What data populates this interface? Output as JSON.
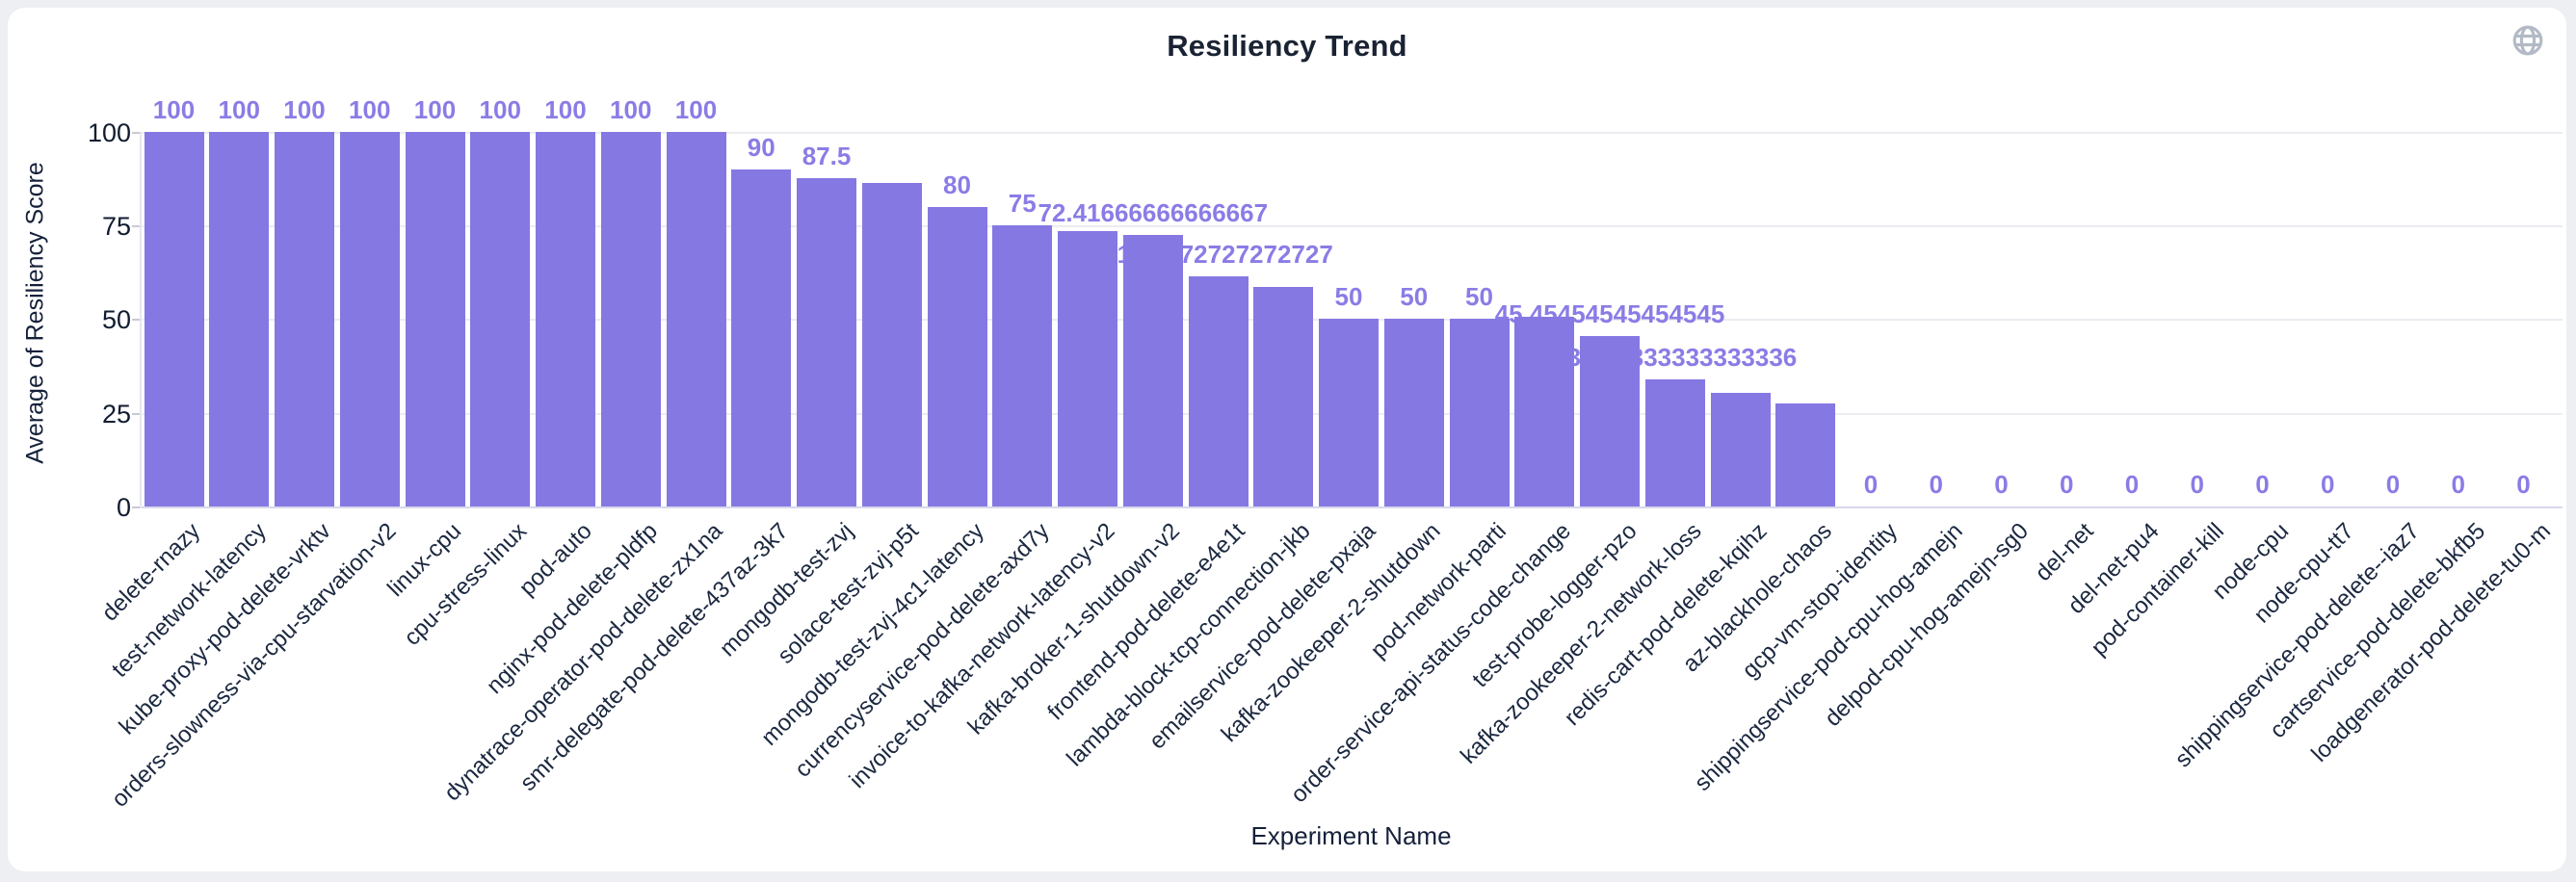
{
  "page": {
    "background": "#edeff2",
    "card_background": "#ffffff"
  },
  "header": {
    "title": "Resiliency Trend",
    "globe_icon": "globe-icon",
    "globe_color": "#b3bac6"
  },
  "chart_data": {
    "type": "bar",
    "title": "Resiliency Trend",
    "xlabel": "Experiment Name",
    "ylabel": "Average of Resiliency Score",
    "ylim": [
      0,
      100
    ],
    "yticks": [
      "0",
      "25",
      "50",
      "75",
      "100"
    ],
    "grid": true,
    "legend": "none",
    "bar_color": "#8578E2",
    "value_label_color": "#8A7CE6",
    "bars": [
      {
        "category": "delete-rnazy",
        "value": 100,
        "label": "100"
      },
      {
        "category": "test-network-latency",
        "value": 100,
        "label": "100"
      },
      {
        "category": "kube-proxy-pod-delete-vrktv",
        "value": 100,
        "label": "100"
      },
      {
        "category": "orders-slowness-via-cpu-starvation-v2",
        "value": 100,
        "label": "100"
      },
      {
        "category": "linux-cpu",
        "value": 100,
        "label": "100"
      },
      {
        "category": "cpu-stress-linux",
        "value": 100,
        "label": "100"
      },
      {
        "category": "pod-auto",
        "value": 100,
        "label": "100"
      },
      {
        "category": "nginx-pod-delete-pldfp",
        "value": 100,
        "label": "100"
      },
      {
        "category": "dynatrace-operator-pod-delete-zx1na",
        "value": 100,
        "label": "100"
      },
      {
        "category": "smr-delegate-pod-delete-437az-3k7",
        "value": 90,
        "label": "90"
      },
      {
        "category": "mongodb-test-zvj",
        "value": 87.5,
        "label": "87.5"
      },
      {
        "category": "solace-test-zvj-p5t",
        "value": 86.4,
        "label": ""
      },
      {
        "category": "mongodb-test-zvj-4c1-latency",
        "value": 80,
        "label": "80"
      },
      {
        "category": "currencyservice-pod-delete-axd7y",
        "value": 75,
        "label": "75"
      },
      {
        "category": "invoice-to-kafka-network-latency-v2",
        "value": 73.4,
        "label": ""
      },
      {
        "category": "kafka-broker-1-shutdown-v2",
        "value": 72.41666666666667,
        "label": "72.41666666666667"
      },
      {
        "category": "frontend-pod-delete-e4e1t",
        "value": 61.27272727272727,
        "label": "61.27272727272727"
      },
      {
        "category": "lambda-block-tcp-connection-jkb",
        "value": 58.5,
        "label": ""
      },
      {
        "category": "emailservice-pod-delete-pxaja",
        "value": 50,
        "label": "50"
      },
      {
        "category": "kafka-zookeeper-2-shutdown",
        "value": 50,
        "label": "50"
      },
      {
        "category": "pod-network-parti",
        "value": 50,
        "label": "50"
      },
      {
        "category": "order-service-api-status-code-change",
        "value": 50.6,
        "label": ""
      },
      {
        "category": "test-probe-logger-pzo",
        "value": 45.45454545454545,
        "label": "45.45454545454545"
      },
      {
        "category": "kafka-zookeeper-2-network-loss",
        "value": 33.833333333333336,
        "label": "33.833333333333336"
      },
      {
        "category": "redis-cart-pod-delete-kqihz",
        "value": 30.3,
        "label": ""
      },
      {
        "category": "az-blackhole-chaos",
        "value": 27.4,
        "label": ""
      },
      {
        "category": "gcp-vm-stop-identity",
        "value": 0,
        "label": "0"
      },
      {
        "category": "shippingservice-pod-cpu-hog-amejn",
        "value": 0,
        "label": "0"
      },
      {
        "category": "delpod-cpu-hog-amejn-sg0",
        "value": 0,
        "label": "0"
      },
      {
        "category": "del-net",
        "value": 0,
        "label": "0"
      },
      {
        "category": "del-net-pu4",
        "value": 0,
        "label": "0"
      },
      {
        "category": "pod-container-kill",
        "value": 0,
        "label": "0"
      },
      {
        "category": "node-cpu",
        "value": 0,
        "label": "0"
      },
      {
        "category": "node-cpu-tt7",
        "value": 0,
        "label": "0"
      },
      {
        "category": "shippingservice-pod-delete--iaz7",
        "value": 0,
        "label": "0"
      },
      {
        "category": "cartservice-pod-delete-bkfb5",
        "value": 0,
        "label": "0"
      },
      {
        "category": "loadgenerator-pod-delete-tu0-m",
        "value": 0,
        "label": "0"
      }
    ]
  }
}
